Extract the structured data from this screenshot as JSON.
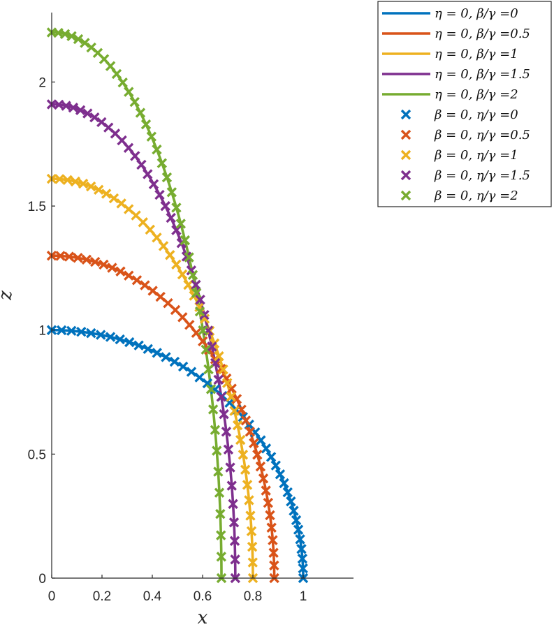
{
  "chart_data": {
    "type": "line",
    "xlabel": "x",
    "ylabel": "z",
    "xlim": [
      0,
      1.2
    ],
    "ylim": [
      0,
      2.28
    ],
    "xticks": [
      0,
      0.2,
      0.4,
      0.6,
      0.8,
      1
    ],
    "xtick_labels": [
      "0",
      "0.2",
      "0.4",
      "0.6",
      "0.8",
      "1"
    ],
    "yticks": [
      0,
      0.5,
      1,
      1.5,
      2
    ],
    "ytick_labels": [
      "0",
      "0.5",
      "1",
      "1.5",
      "2"
    ],
    "grid": false,
    "legend_position": "top-right, outside the axes",
    "series": [
      {
        "name": "η = 0, β/γ =0",
        "style": "line",
        "color": "#0072BD",
        "z0": 1.0,
        "x_base": 1.0
      },
      {
        "name": "η = 0, β/γ =0.5",
        "style": "line",
        "color": "#D95319",
        "z0": 1.3,
        "x_base": 0.885
      },
      {
        "name": "η = 0, β/γ =1",
        "style": "line",
        "color": "#EDB120",
        "z0": 1.61,
        "x_base": 0.8
      },
      {
        "name": "η = 0, β/γ =1.5",
        "style": "line",
        "color": "#7E2F8E",
        "z0": 1.91,
        "x_base": 0.73
      },
      {
        "name": "η = 0, β/γ =2",
        "style": "line",
        "color": "#77AC30",
        "z0": 2.2,
        "x_base": 0.675
      },
      {
        "name": "β = 0, η/γ =0",
        "style": "marker",
        "color": "#0072BD",
        "z0": 1.0,
        "x_base": 1.0
      },
      {
        "name": "β = 0, η/γ =0.5",
        "style": "marker",
        "color": "#D95319",
        "z0": 1.3,
        "x_base": 0.885
      },
      {
        "name": "β = 0, η/γ =1",
        "style": "marker",
        "color": "#EDB120",
        "z0": 1.61,
        "x_base": 0.8
      },
      {
        "name": "β = 0, η/γ =1.5",
        "style": "marker",
        "color": "#7E2F8E",
        "z0": 1.91,
        "x_base": 0.73
      },
      {
        "name": "β = 0, η/γ =2",
        "style": "marker",
        "color": "#77AC30",
        "z0": 2.2,
        "x_base": 0.675
      }
    ]
  }
}
